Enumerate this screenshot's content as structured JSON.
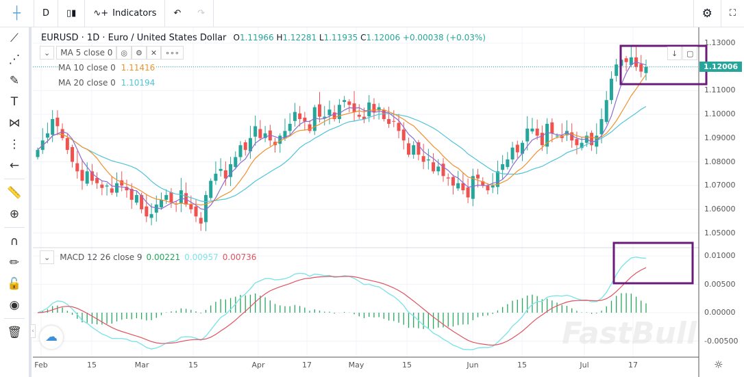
{
  "toolbar": {
    "interval": "D",
    "chart_type_icon": "candles-icon",
    "indicators_label": "Indicators",
    "undo_icon": "undo-icon",
    "redo_icon": "redo-icon",
    "settings_icon": "gear-icon",
    "fullscreen_icon": "fullscreen-icon"
  },
  "sidebar": {
    "items": [
      "crosshair-icon",
      "trend-line-icon",
      "fib-icon",
      "brush-icon",
      "text-icon",
      "pattern-icon",
      "prediction-icon",
      "back-arrow-icon",
      "ruler-icon",
      "zoom-in-icon",
      "magnet-icon",
      "lock-drawing-icon",
      "lock-icon",
      "eye-icon",
      "trash-icon"
    ]
  },
  "header": {
    "symbol": "EURUSD · 1D · Euro / United States Dollar",
    "o_label": "O",
    "o": "1.11966",
    "h_label": "H",
    "h": "1.12281",
    "l_label": "L",
    "l": "1.11935",
    "c_label": "C",
    "c": "1.12006",
    "change": "+0.00038 (+0.03%)"
  },
  "studies": {
    "ma5": {
      "label": "MA 5 close 0",
      "color": "#8c6bd1"
    },
    "ma10": {
      "label": "MA 10 close 0",
      "value": "1.11416",
      "color": "#f0902c"
    },
    "ma20": {
      "label": "MA 20 close 0",
      "value": "1.10194",
      "color": "#4fc3d9"
    },
    "macd": {
      "label": "MACD 12 26 close 9",
      "hist": "0.00221",
      "macd": "0.00957",
      "signal": "0.00736",
      "hist_color": "#26a65b",
      "macd_color": "#7fe3e8",
      "signal_color": "#e0525e"
    }
  },
  "price_axis": {
    "labels": [
      "1.13000",
      "1.11000",
      "1.10000",
      "1.09000",
      "1.08000",
      "1.07000",
      "1.06000",
      "1.05000"
    ],
    "last_price": "1.12006",
    "last_price_color": "#26a69a"
  },
  "macd_axis": {
    "labels": [
      "0.01000",
      "0.00500",
      "0.00000",
      "-0.00500"
    ]
  },
  "time_axis": {
    "labels": [
      "Feb",
      "15",
      "Mar",
      "15",
      "Apr",
      "17",
      "May",
      "15",
      "Jun",
      "15",
      "Jul",
      "17"
    ]
  },
  "watermark": "FastBull",
  "colors": {
    "up": "#26a69a",
    "down": "#ef5350",
    "annotation": "#6a1b7a"
  },
  "chart_data": {
    "type": "candlestick",
    "closes": [
      1.085,
      1.089,
      1.092,
      1.098,
      1.095,
      1.09,
      1.085,
      1.08,
      1.076,
      1.072,
      1.076,
      1.072,
      1.071,
      1.069,
      1.07,
      1.067,
      1.071,
      1.07,
      1.068,
      1.064,
      1.066,
      1.06,
      1.057,
      1.058,
      1.062,
      1.064,
      1.066,
      1.063,
      1.062,
      1.068,
      1.062,
      1.06,
      1.057,
      1.054,
      1.066,
      1.072,
      1.075,
      1.077,
      1.073,
      1.079,
      1.082,
      1.087,
      1.085,
      1.09,
      1.095,
      1.09,
      1.092,
      1.089,
      1.087,
      1.091,
      1.093,
      1.096,
      1.101,
      1.098,
      1.097,
      1.093,
      1.103,
      1.099,
      1.099,
      1.102,
      1.098,
      1.104,
      1.106,
      1.104,
      1.101,
      1.099,
      1.098,
      1.105,
      1.101,
      1.103,
      1.098,
      1.096,
      1.097,
      1.093,
      1.089,
      1.083,
      1.087,
      1.083,
      1.08,
      1.081,
      1.076,
      1.078,
      1.074,
      1.073,
      1.07,
      1.071,
      1.068,
      1.065,
      1.074,
      1.073,
      1.07,
      1.068,
      1.07,
      1.076,
      1.079,
      1.081,
      1.086,
      1.084,
      1.088,
      1.094,
      1.094,
      1.091,
      1.087,
      1.096,
      1.092,
      1.091,
      1.09,
      1.093,
      1.089,
      1.087,
      1.088,
      1.091,
      1.087,
      1.091,
      1.098,
      1.106,
      1.115,
      1.121,
      1.123,
      1.122,
      1.124,
      1.12,
      1.118,
      1.12
    ],
    "price_range": [
      1.045,
      1.133
    ],
    "macd_range": [
      -0.0065,
      0.0115
    ],
    "grid": true
  }
}
